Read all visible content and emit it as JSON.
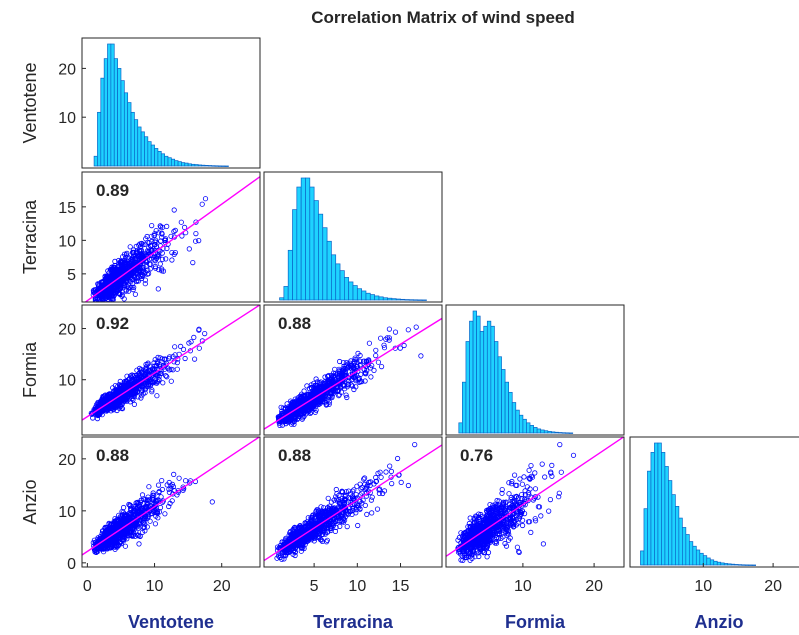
{
  "chart_data": {
    "type": "scatter",
    "title": "Correlation Matrix of wind speed",
    "variables": [
      "Ventotene",
      "Terracina",
      "Formia",
      "Anzio"
    ],
    "colors": {
      "hist_fill": "#1ed2ff",
      "hist_edge": "#0a64c8",
      "points": "#0000ff",
      "fit_line": "#ff00ff",
      "variable_label": "#1f2f8f"
    },
    "grid": false,
    "x_ticks": {
      "Ventotene": [
        0,
        10,
        20
      ],
      "Terracina": [
        5,
        10,
        15
      ],
      "Formia": [
        10,
        20
      ],
      "Anzio": [
        10,
        20
      ]
    },
    "y_ticks": {
      "Ventotene": [
        10,
        20
      ],
      "Terracina": [
        5,
        10,
        15
      ],
      "Formia": [
        10,
        20
      ],
      "Anzio": [
        0,
        10,
        20
      ]
    },
    "x_range": {
      "Ventotene": [
        -0.8,
        25.7
      ],
      "Terracina": [
        -0.8,
        19.8
      ],
      "Formia": [
        -0.8,
        24.2
      ],
      "Anzio": [
        -0.5,
        25
      ]
    },
    "y_range": {
      "Terracina": [
        0.8,
        20.2
      ],
      "Formia": [
        -0.8,
        24.6
      ],
      "Anzio": [
        -0.8,
        24.2
      ]
    },
    "histogram_bin_width": 0.5,
    "histograms": [
      {
        "variable": "Ventotene",
        "range": [
          0,
          25.5
        ],
        "counts": [
          0,
          0,
          2,
          11,
          18,
          22,
          25,
          25,
          22,
          20,
          17.5,
          15,
          13,
          11,
          9.5,
          8,
          7,
          6,
          5,
          4.3,
          3.6,
          3,
          2.5,
          2,
          1.7,
          1.4,
          1.1,
          0.9,
          0.7,
          0.6,
          0.45,
          0.35,
          0.3,
          0.22,
          0.17,
          0.13,
          0.1,
          0.07,
          0.05,
          0.03,
          0.02,
          0.01
        ]
      },
      {
        "variable": "Terracina",
        "range": [
          0,
          25.5
        ],
        "counts": [
          0,
          0,
          0.5,
          3,
          11,
          20,
          25,
          27,
          27,
          25,
          22,
          19,
          16,
          13,
          10,
          8,
          6.5,
          5,
          4,
          3.2,
          2.5,
          2,
          1.5,
          1.2,
          0.9,
          0.7,
          0.5,
          0.4,
          0.3,
          0.22,
          0.15,
          0.1,
          0.07,
          0.05,
          0.03,
          0.02
        ]
      },
      {
        "variable": "Formia",
        "range": [
          0,
          25.5
        ],
        "counts": [
          0,
          0,
          2,
          10,
          18,
          22,
          24,
          23,
          20,
          21,
          22,
          21,
          18,
          15,
          12.5,
          10,
          8,
          6,
          4.5,
          3.5,
          2.7,
          2,
          1.5,
          1.1,
          0.8,
          0.6,
          0.45,
          0.32,
          0.22,
          0.15,
          0.1,
          0.06,
          0.04,
          0.02
        ]
      },
      {
        "variable": "Anzio",
        "range": [
          0,
          25.5
        ],
        "counts": [
          0,
          0,
          3,
          12,
          20,
          24,
          26,
          26,
          24,
          21,
          18,
          15,
          12.5,
          10,
          8,
          6.5,
          5,
          4,
          3.2,
          2.5,
          2,
          1.5,
          1.1,
          0.8,
          0.6,
          0.45,
          0.33,
          0.25,
          0.18,
          0.12,
          0.08,
          0.05,
          0.03,
          0.02,
          0.01
        ]
      }
    ],
    "correlations": [
      {
        "x": "Ventotene",
        "y": "Terracina",
        "r": "0.89",
        "fit": {
          "slope": 0.72,
          "intercept": 1.0
        },
        "approx_max_x": 22,
        "noise_sd": 1.3
      },
      {
        "x": "Ventotene",
        "y": "Formia",
        "r": "0.92",
        "fit": {
          "slope": 0.85,
          "intercept": 2.8
        },
        "approx_max_x": 22,
        "noise_sd": 1.1
      },
      {
        "x": "Terracina",
        "y": "Formia",
        "r": "0.88",
        "fit": {
          "slope": 1.05,
          "intercept": 1.2
        },
        "approx_max_x": 18,
        "noise_sd": 1.3
      },
      {
        "x": "Ventotene",
        "y": "Anzio",
        "r": "0.88",
        "fit": {
          "slope": 0.86,
          "intercept": 2.2
        },
        "approx_max_x": 21,
        "noise_sd": 1.4
      },
      {
        "x": "Terracina",
        "y": "Anzio",
        "r": "0.88",
        "fit": {
          "slope": 1.08,
          "intercept": 1.3
        },
        "approx_max_x": 18,
        "noise_sd": 1.4
      },
      {
        "x": "Formia",
        "y": "Anzio",
        "r": "0.76",
        "fit": {
          "slope": 0.92,
          "intercept": 2.0
        },
        "approx_max_x": 20,
        "noise_sd": 2.0
      }
    ]
  }
}
